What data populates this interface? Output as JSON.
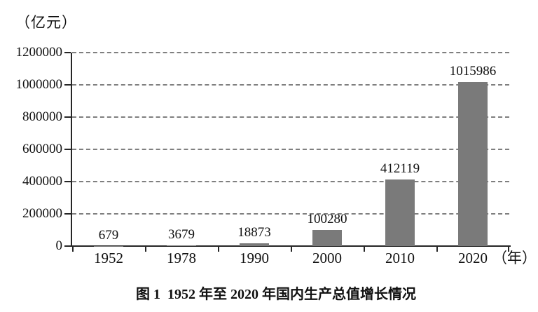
{
  "figure": {
    "unit_label": "（亿元）",
    "caption": "图 1  1952 年至 2020 年国内生产总值增长情况",
    "x_axis_suffix": "（年）"
  },
  "chart_data": {
    "type": "bar",
    "title": "图 1  1952 年至 2020 年国内生产总值增长情况",
    "categories": [
      "1952",
      "1978",
      "1990",
      "2000",
      "2010",
      "2020"
    ],
    "values": [
      679,
      3679,
      18873,
      100280,
      412119,
      1015986
    ],
    "value_labels": [
      "679",
      "3679",
      "18873",
      "100280",
      "412119",
      "1015986"
    ],
    "xlabel": "（年）",
    "ylabel": "（亿元）",
    "ylim": [
      0,
      1200000
    ],
    "y_ticks": [
      0,
      200000,
      400000,
      600000,
      800000,
      1000000,
      1200000
    ],
    "y_tick_labels": [
      "0",
      "200000",
      "400000",
      "600000",
      "800000",
      "1000000",
      "1200000"
    ],
    "grid": "dashed-horizontal",
    "legend": "none",
    "bar_color": "#7a7a7a",
    "axis_color": "#262626",
    "gridline_color": "#7f7f7f"
  }
}
